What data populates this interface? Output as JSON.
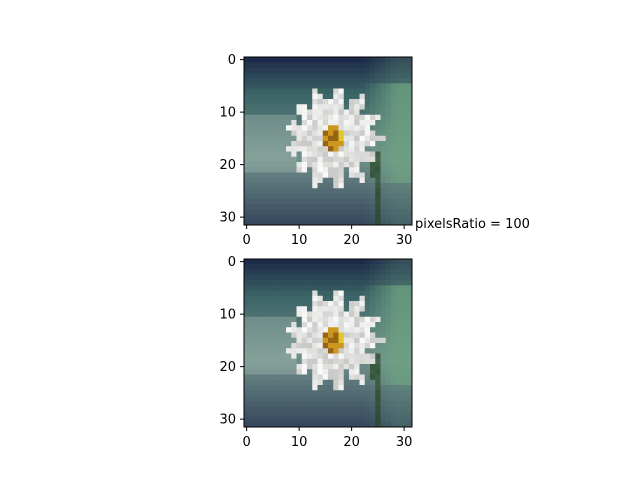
{
  "chart_data": [
    {
      "type": "heatmap",
      "title": "",
      "xlabel": "",
      "ylabel": "",
      "image_size": [
        32,
        32
      ],
      "xlim": [
        -0.5,
        31.5
      ],
      "ylim": [
        31.5,
        -0.5
      ],
      "x_ticks": [
        0,
        10,
        20,
        30
      ],
      "y_ticks": [
        0,
        10,
        20,
        30
      ],
      "content": "daisy-flower-pixel-image",
      "colors": {
        "background_dark": "#1d2b4a",
        "background_green": "#6fa283",
        "petal": "#e6e6e6",
        "center": "#c8901c",
        "stem": "#2f4a2a"
      }
    },
    {
      "type": "heatmap",
      "title": "",
      "xlabel": "",
      "ylabel": "",
      "image_size": [
        32,
        32
      ],
      "xlim": [
        -0.5,
        31.5
      ],
      "ylim": [
        31.5,
        -0.5
      ],
      "x_ticks": [
        0,
        10,
        20,
        30
      ],
      "y_ticks": [
        0,
        10,
        20,
        30
      ],
      "content": "daisy-flower-pixel-image",
      "colors": {
        "background_dark": "#1d2b4a",
        "background_green": "#6fa283",
        "petal": "#e6e6e6",
        "center": "#c8901c",
        "stem": "#2f4a2a"
      }
    }
  ],
  "annotation": "pixelsRatio = 100"
}
